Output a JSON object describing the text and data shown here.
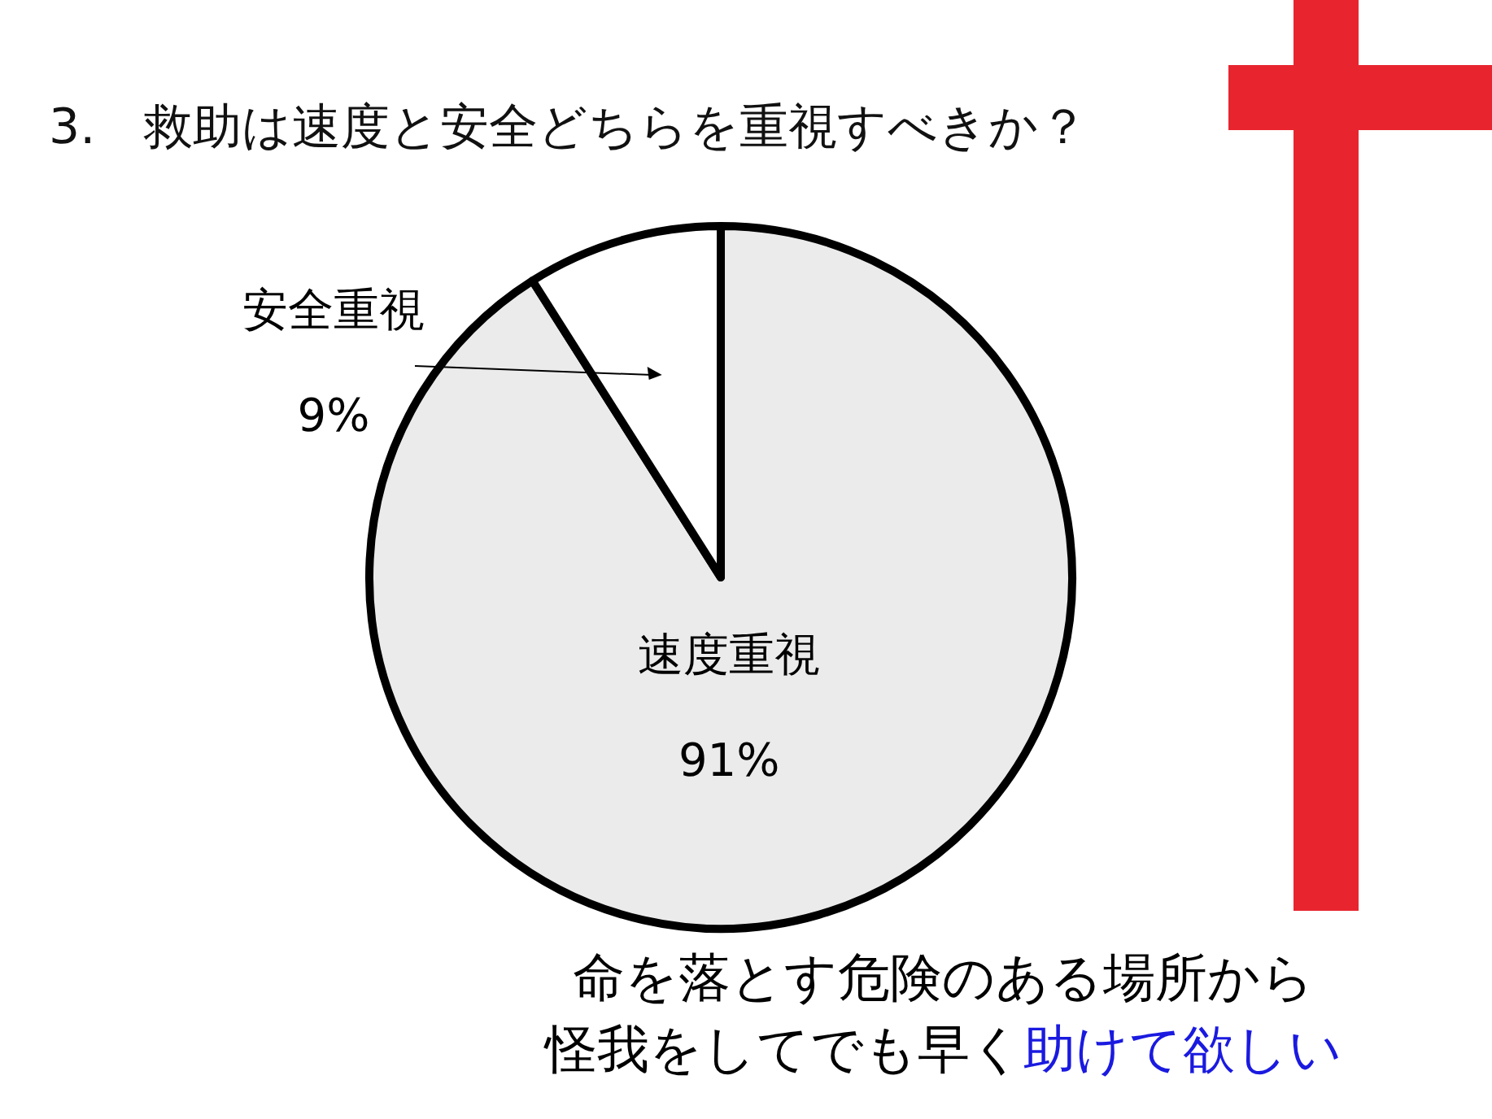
{
  "chart_data": {
    "type": "pie",
    "title": "3.　救助は速度と安全どちらを重視すべきか？",
    "categories": [
      "速度重視",
      "安全重視"
    ],
    "values": [
      91,
      9
    ],
    "value_labels": [
      "91%",
      "9%"
    ],
    "colors": [
      "#ebebeb",
      "#ffffff"
    ],
    "annotations": [
      "命を落とす危険のある場所から",
      "怪我をしてでも早く",
      "助けて欲しい"
    ]
  }
}
